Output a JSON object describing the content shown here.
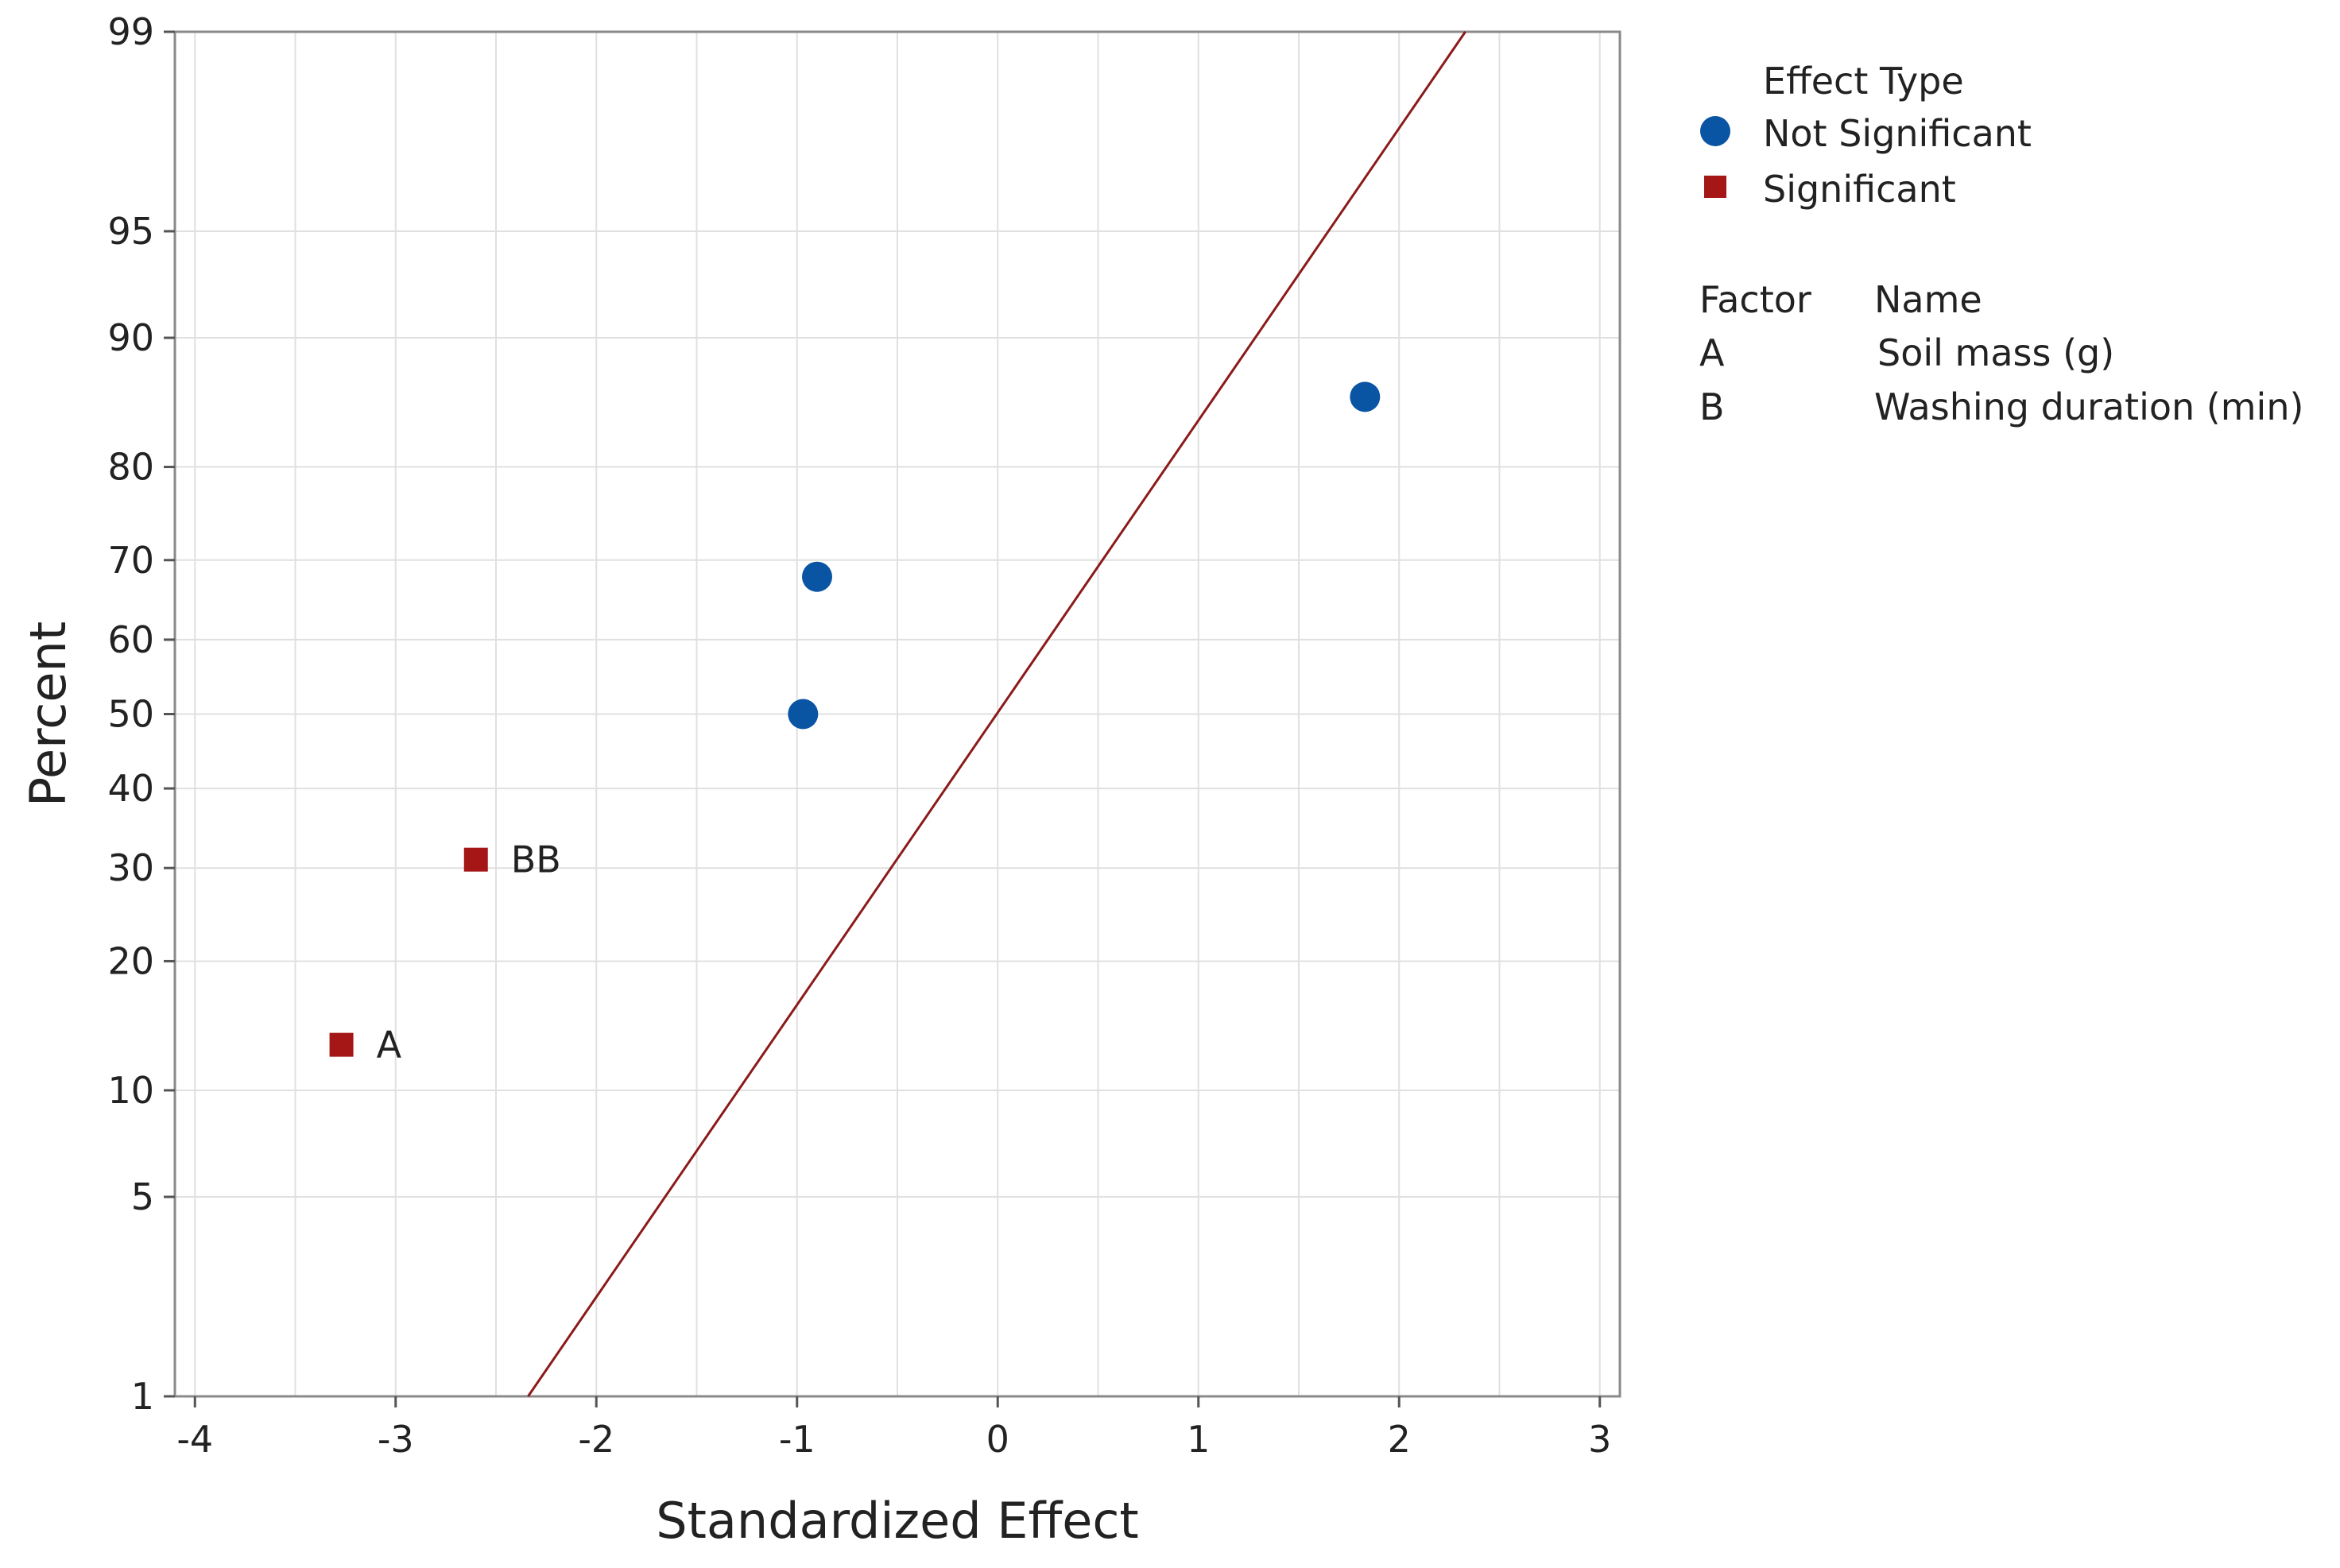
{
  "chart_data": {
    "type": "scatter",
    "title": "",
    "xlabel": "Standardized Effect",
    "ylabel": "Percent",
    "xlim": [
      -4.1,
      3.1
    ],
    "ylim": [
      1,
      99
    ],
    "y_scale": "normal-probability",
    "grid": true,
    "x_ticks": [
      -4,
      -3,
      -2,
      -1,
      0,
      1,
      2,
      3
    ],
    "x_tick_labels": [
      "-4",
      "-3",
      "-2",
      "-1",
      "0",
      "1",
      "2",
      "3"
    ],
    "y_ticks": [
      1,
      5,
      10,
      20,
      30,
      40,
      50,
      60,
      70,
      80,
      90,
      95,
      99
    ],
    "y_tick_labels": [
      "1",
      "5",
      "10",
      "20",
      "30",
      "40",
      "50",
      "60",
      "70",
      "80",
      "90",
      "95",
      "99"
    ],
    "reference_line": {
      "name": "fitted normal line",
      "color": "#8b1a1a",
      "x": [
        -2.34,
        2.33
      ],
      "y": [
        1,
        99
      ]
    },
    "series": [
      {
        "name": "Not Significant",
        "marker": "circle",
        "color": "#0a55a3",
        "points": [
          {
            "x": -0.97,
            "y": 50,
            "label": ""
          },
          {
            "x": -0.9,
            "y": 68,
            "label": ""
          },
          {
            "x": 1.83,
            "y": 86,
            "label": ""
          }
        ]
      },
      {
        "name": "Significant",
        "marker": "square",
        "color": "#a51616",
        "points": [
          {
            "x": -3.27,
            "y": 13,
            "label": "A"
          },
          {
            "x": -2.6,
            "y": 31,
            "label": "BB"
          }
        ]
      }
    ],
    "legend": {
      "position": "right",
      "title": "Effect Type",
      "entries": [
        "Not Significant",
        "Significant"
      ],
      "factor_header": "Factor",
      "name_header": "Name",
      "factors": [
        {
          "factor": "A",
          "name": "Soil mass (g)"
        },
        {
          "factor": "B",
          "name": "Washing duration (min)"
        }
      ]
    }
  }
}
